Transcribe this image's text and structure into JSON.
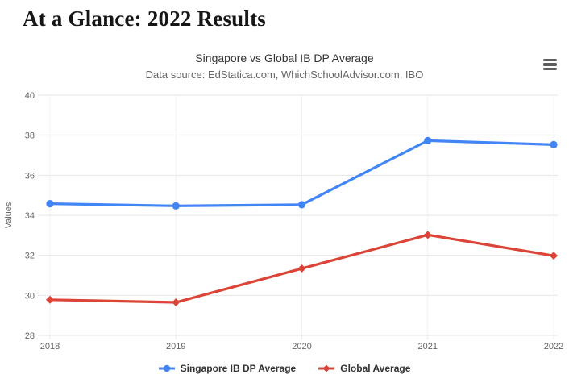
{
  "page": {
    "title": "At a Glance: 2022 Results"
  },
  "chart": {
    "menu_icon": "hamburger-menu-icon",
    "colors": {
      "grid_horizontal": "#e6e6e6",
      "grid_vertical": "#f0f0f0",
      "axis_label": "#666666",
      "title_text": "#333333",
      "subtitle_text": "#666666",
      "legend_text": "#333333",
      "menu_icon": "#5e5e5e"
    }
  },
  "chart_data": {
    "type": "line",
    "title": "Singapore vs Global IB DP Average",
    "subtitle": "Data source: EdStatica.com, WhichSchoolAdvisor.com, IBO",
    "xlabel": "",
    "ylabel": "Values",
    "categories": [
      "2018",
      "2019",
      "2020",
      "2021",
      "2022"
    ],
    "ylim": [
      28,
      40
    ],
    "yticks": [
      28,
      30,
      32,
      34,
      36,
      38,
      40
    ],
    "grid": true,
    "legend_position": "bottom",
    "series": [
      {
        "name": "Singapore IB DP Average",
        "color": "#4285f4",
        "marker": "circle",
        "values": [
          34.58,
          34.47,
          34.53,
          37.73,
          37.53
        ]
      },
      {
        "name": "Global Average",
        "color": "#db4437",
        "marker": "diamond",
        "values": [
          29.78,
          29.65,
          31.34,
          33.02,
          31.98
        ]
      }
    ]
  }
}
